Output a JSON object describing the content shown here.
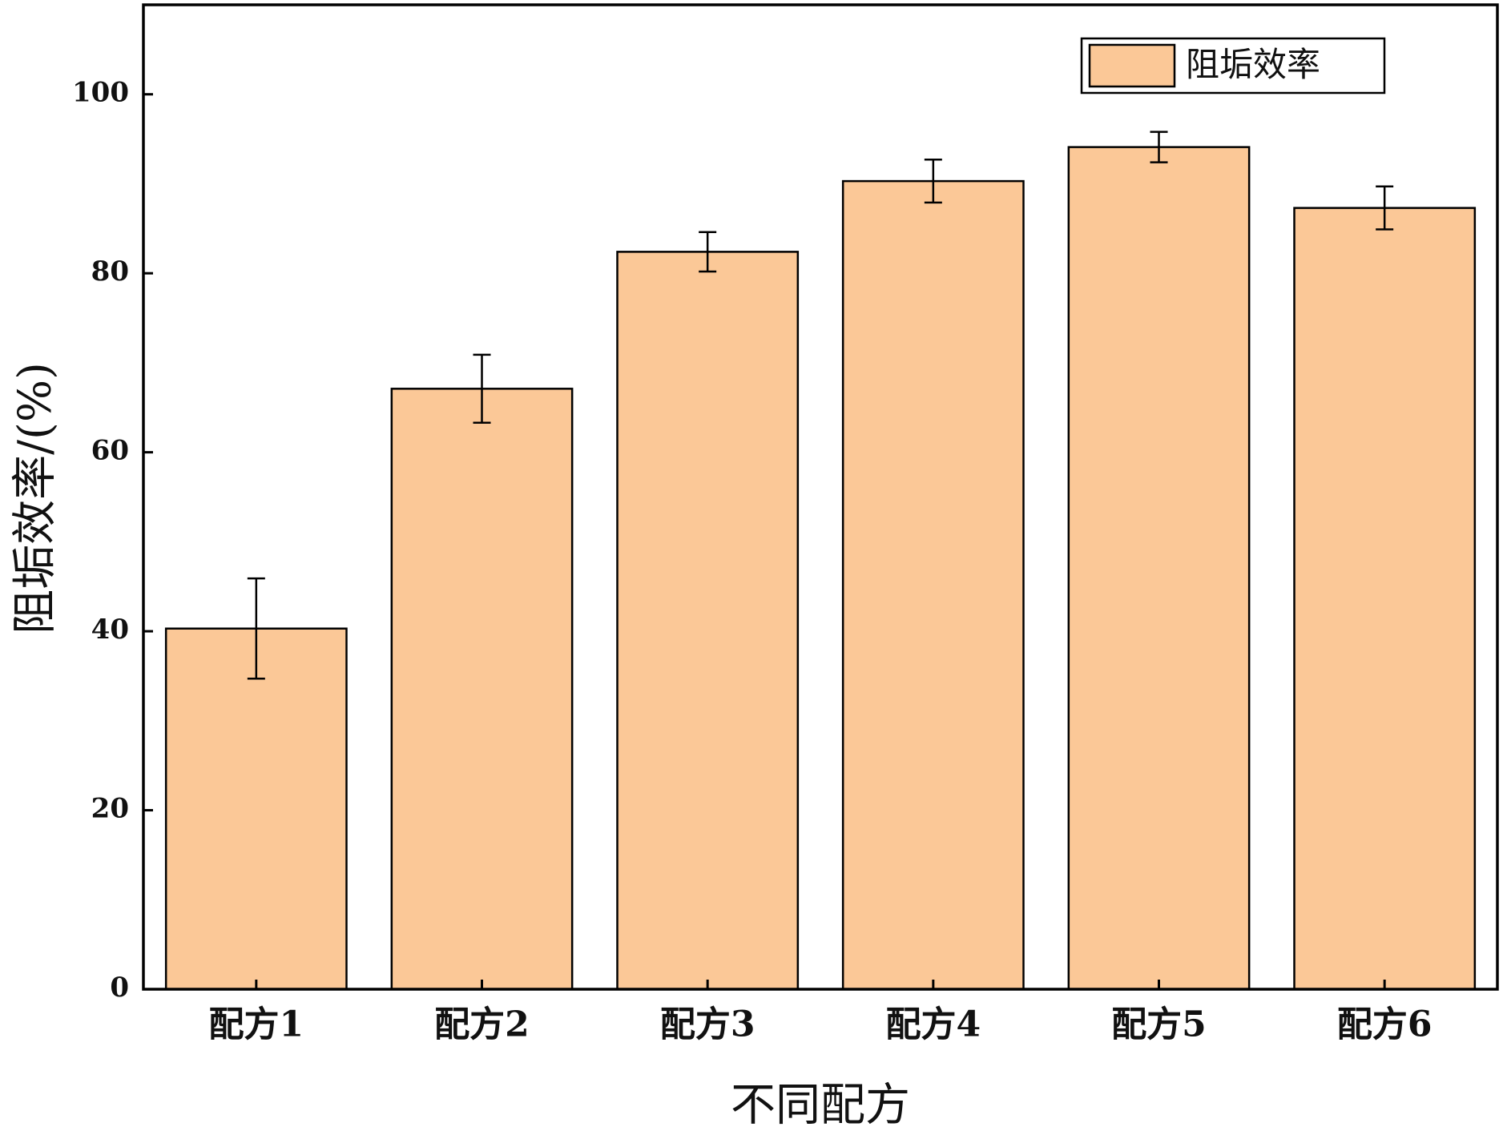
{
  "chart_data": {
    "type": "bar",
    "x_label": "不同配方",
    "y_label": "阻垢效率/(%)",
    "categories": [
      "配方1",
      "配方2",
      "配方3",
      "配方4",
      "配方5",
      "配方6"
    ],
    "series": [
      {
        "name": "阻垢效率",
        "color": "#fbc897",
        "values": [
          40.3,
          67.1,
          82.4,
          90.3,
          94.1,
          87.3
        ],
        "errors": [
          5.6,
          3.8,
          2.2,
          2.4,
          1.7,
          2.4
        ]
      }
    ],
    "ylim": [
      0,
      110
    ],
    "yticks": [
      0,
      20,
      40,
      60,
      80,
      100
    ],
    "legend": "top-right"
  }
}
